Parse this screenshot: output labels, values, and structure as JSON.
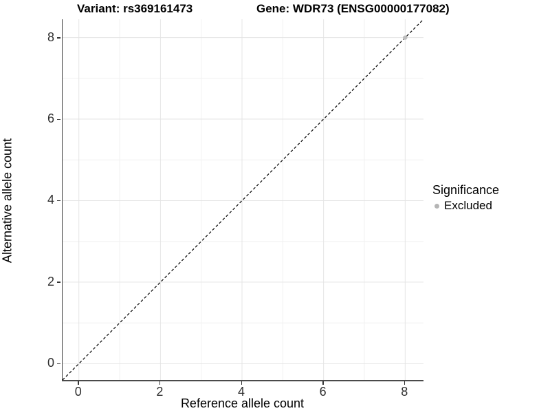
{
  "chart_data": {
    "type": "scatter",
    "title_left": "Variant: rs369161473",
    "title_right": "Gene: WDR73 (ENSG00000177082)",
    "xlabel": "Reference allele count",
    "ylabel": "Alternative allele count",
    "xlim": [
      -0.4,
      8.45
    ],
    "ylim": [
      -0.4,
      8.45
    ],
    "x_ticks": [
      0,
      2,
      4,
      6,
      8
    ],
    "y_ticks": [
      0,
      2,
      4,
      6,
      8
    ],
    "x_minor": [
      1,
      3,
      5,
      7
    ],
    "y_minor": [
      1,
      3,
      5,
      7
    ],
    "grid": true,
    "identity_line": {
      "style": "dashed",
      "color": "#000000",
      "from": [
        -0.4,
        -0.4
      ],
      "to": [
        8.45,
        8.45
      ]
    },
    "series": [
      {
        "name": "Excluded",
        "color": "#bdbdbd",
        "points": [
          [
            8,
            8
          ]
        ]
      }
    ],
    "legend": {
      "title": "Significance",
      "position": "right",
      "items": [
        {
          "label": "Excluded",
          "color": "#b5b5b5"
        }
      ]
    },
    "colors": {
      "grid_major": "#e4e4e4",
      "grid_minor": "#f1f1f1",
      "axis_line": "#404040",
      "tick": "#333333",
      "text": "#000000"
    }
  }
}
